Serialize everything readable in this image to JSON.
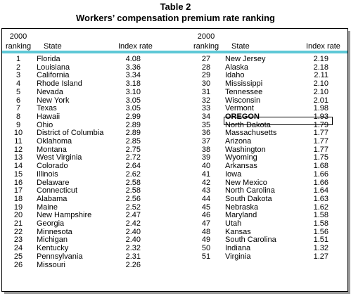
{
  "title": "Table 2",
  "subtitle": "Workers’ compensation premium rate ranking",
  "headers": {
    "year": "2000",
    "ranking": "ranking",
    "state": "State",
    "index": "Index rate"
  },
  "left": [
    {
      "rank": "1",
      "state": "Florida",
      "index": "4.08"
    },
    {
      "rank": "2",
      "state": "Louisiana",
      "index": "3.36"
    },
    {
      "rank": "3",
      "state": "California",
      "index": "3.34"
    },
    {
      "rank": "4",
      "state": "Rhode Island",
      "index": "3.18"
    },
    {
      "rank": "5",
      "state": "Nevada",
      "index": "3.10"
    },
    {
      "rank": "6",
      "state": "New York",
      "index": "3.05"
    },
    {
      "rank": "7",
      "state": "Texas",
      "index": "3.05"
    },
    {
      "rank": "8",
      "state": "Hawaii",
      "index": "2.99"
    },
    {
      "rank": "9",
      "state": "Ohio",
      "index": "2.89"
    },
    {
      "rank": "10",
      "state": "District of Columbia",
      "index": "2.89"
    },
    {
      "rank": "11",
      "state": "Oklahoma",
      "index": "2.85"
    },
    {
      "rank": "12",
      "state": "Montana",
      "index": "2.75"
    },
    {
      "rank": "13",
      "state": "West Virginia",
      "index": "2.72"
    },
    {
      "rank": "14",
      "state": "Colorado",
      "index": "2.64"
    },
    {
      "rank": "15",
      "state": "Illinois",
      "index": "2.62"
    },
    {
      "rank": "16",
      "state": "Delaware",
      "index": "2.58"
    },
    {
      "rank": "17",
      "state": "Connecticut",
      "index": "2.58"
    },
    {
      "rank": "18",
      "state": "Alabama",
      "index": "2.56"
    },
    {
      "rank": "19",
      "state": "Maine",
      "index": "2.52"
    },
    {
      "rank": "20",
      "state": "New Hampshire",
      "index": "2.47"
    },
    {
      "rank": "21",
      "state": "Georgia",
      "index": "2.42"
    },
    {
      "rank": "22",
      "state": "Minnesota",
      "index": "2.40"
    },
    {
      "rank": "23",
      "state": "Michigan",
      "index": "2.40"
    },
    {
      "rank": "24",
      "state": "Kentucky",
      "index": "2.32"
    },
    {
      "rank": "25",
      "state": "Pennsylvania",
      "index": "2.31"
    },
    {
      "rank": "26",
      "state": "Missouri",
      "index": "2.26"
    }
  ],
  "right": [
    {
      "rank": "27",
      "state": "New Jersey",
      "index": "2.19"
    },
    {
      "rank": "28",
      "state": "Alaska",
      "index": "2.18"
    },
    {
      "rank": "29",
      "state": "Idaho",
      "index": "2.11"
    },
    {
      "rank": "30",
      "state": "Mississippi",
      "index": "2.10"
    },
    {
      "rank": "31",
      "state": "Tennessee",
      "index": "2.10"
    },
    {
      "rank": "32",
      "state": "Wisconsin",
      "index": "2.01"
    },
    {
      "rank": "33",
      "state": "Vermont",
      "index": "1.98"
    },
    {
      "rank": "34",
      "state": "OREGON",
      "index": "1.93"
    },
    {
      "rank": "35",
      "state": "North Dakota",
      "index": "1.79"
    },
    {
      "rank": "36",
      "state": "Massachusetts",
      "index": "1.77"
    },
    {
      "rank": "37",
      "state": "Arizona",
      "index": "1.77"
    },
    {
      "rank": "38",
      "state": "Washington",
      "index": "1.77"
    },
    {
      "rank": "39",
      "state": "Wyoming",
      "index": "1.75"
    },
    {
      "rank": "40",
      "state": "Arkansas",
      "index": "1.68"
    },
    {
      "rank": "41",
      "state": "Iowa",
      "index": "1.66"
    },
    {
      "rank": "42",
      "state": "New Mexico",
      "index": "1.66"
    },
    {
      "rank": "43",
      "state": "North Carolina",
      "index": "1.64"
    },
    {
      "rank": "44",
      "state": "South Dakota",
      "index": "1.63"
    },
    {
      "rank": "45",
      "state": "Nebraska",
      "index": "1.62"
    },
    {
      "rank": "46",
      "state": "Maryland",
      "index": "1.58"
    },
    {
      "rank": "47",
      "state": "Utah",
      "index": "1.58"
    },
    {
      "rank": "48",
      "state": "Kansas",
      "index": "1.56"
    },
    {
      "rank": "49",
      "state": "South Carolina",
      "index": "1.51"
    },
    {
      "rank": "50",
      "state": "Indiana",
      "index": "1.32"
    },
    {
      "rank": "51",
      "state": "Virginia",
      "index": "1.27"
    }
  ],
  "highlight_state": "OREGON",
  "colors": {
    "band": "#5ec8d6",
    "shadow": "#9a9a9a"
  }
}
